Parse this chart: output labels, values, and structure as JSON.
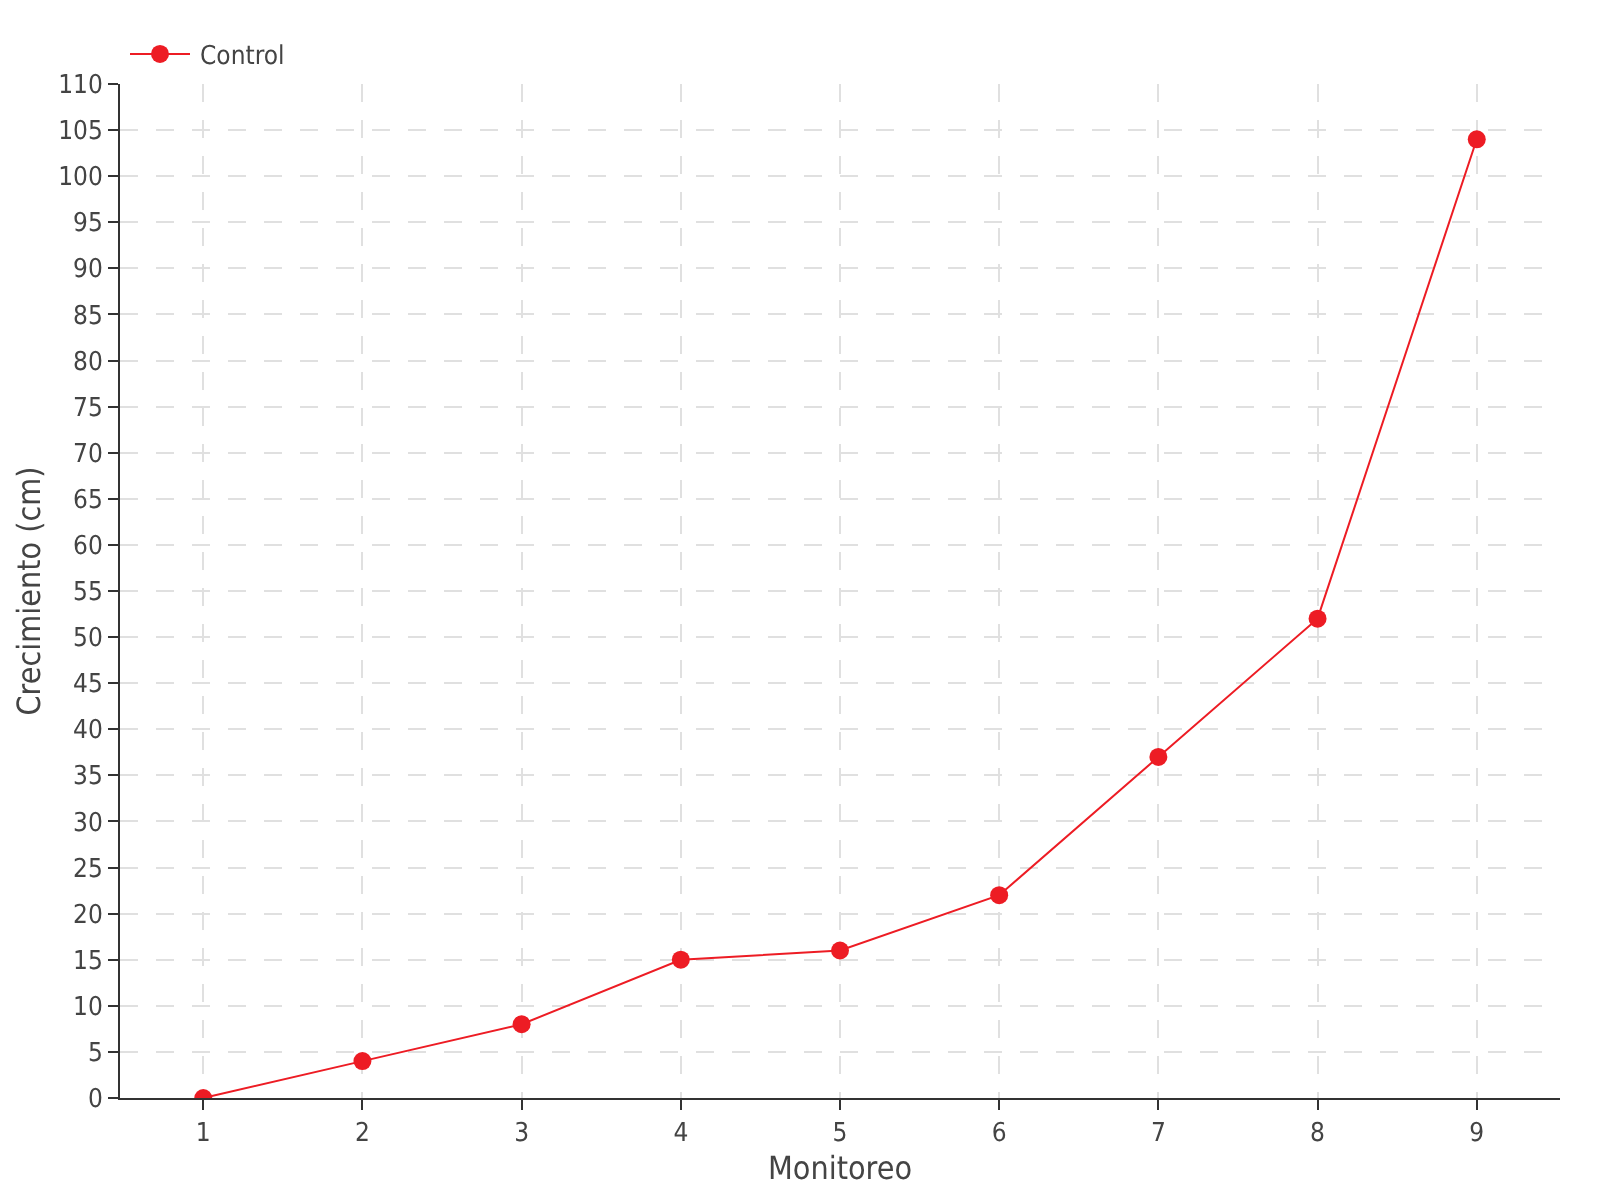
{
  "chart_data": {
    "type": "line",
    "xlabel": "Monitoreo",
    "ylabel": "Crecimiento (cm)",
    "categories": [
      "1",
      "2",
      "3",
      "4",
      "5",
      "6",
      "7",
      "8",
      "9"
    ],
    "series": [
      {
        "name": "Control",
        "color": "#ed1c24",
        "values": [
          0,
          4,
          8,
          15,
          16,
          22,
          37,
          52,
          104
        ]
      }
    ],
    "ylim": [
      0,
      110
    ],
    "yticks": [
      0,
      5,
      10,
      15,
      20,
      25,
      30,
      35,
      40,
      45,
      50,
      55,
      60,
      65,
      70,
      75,
      80,
      85,
      90,
      95,
      100,
      105,
      110
    ],
    "grid": true,
    "legend": "top left",
    "marker": "circle",
    "line_style": "solid"
  }
}
